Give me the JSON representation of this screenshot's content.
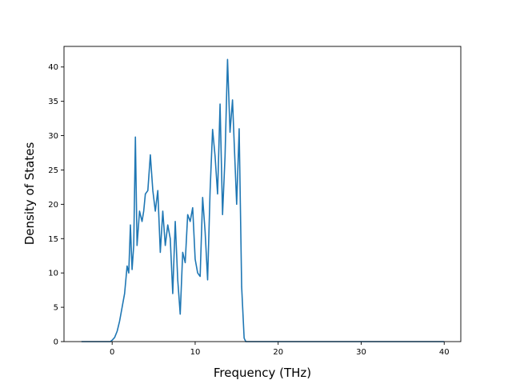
{
  "chart_data": {
    "type": "line",
    "title": "",
    "xlabel": "Frequency (THz)",
    "ylabel": "Density of States",
    "xlim": [
      -5.8,
      42
    ],
    "ylim": [
      0,
      43
    ],
    "xticks": [
      0,
      10,
      20,
      30,
      40
    ],
    "yticks": [
      0,
      5,
      10,
      15,
      20,
      25,
      30,
      35,
      40
    ],
    "grid": false,
    "legend": "none",
    "series_color": "#1f77b4",
    "series": [
      {
        "x": [
          -3.7,
          -1.0,
          -0.2,
          0.0,
          0.3,
          0.6,
          0.9,
          1.2,
          1.5,
          1.8,
          2.0,
          2.2,
          2.4,
          2.6,
          2.8,
          3.0,
          3.3,
          3.6,
          3.8,
          4.0,
          4.3,
          4.6,
          4.9,
          5.2,
          5.5,
          5.8,
          6.1,
          6.4,
          6.7,
          7.0,
          7.3,
          7.6,
          7.9,
          8.2,
          8.5,
          8.8,
          9.1,
          9.4,
          9.7,
          10.0,
          10.3,
          10.6,
          10.9,
          11.2,
          11.5,
          11.8,
          12.1,
          12.4,
          12.7,
          13.0,
          13.3,
          13.6,
          13.9,
          14.2,
          14.5,
          14.7,
          15.0,
          15.3,
          15.6,
          15.9,
          16.1,
          16.3,
          16.5,
          16.7,
          20.0,
          30.0,
          40.0
        ],
        "y": [
          0,
          0,
          0,
          0.2,
          0.6,
          1.5,
          3.0,
          5.0,
          7.0,
          11.0,
          10.0,
          17.0,
          10.5,
          14.0,
          29.8,
          14.0,
          19.0,
          17.5,
          19.0,
          21.5,
          22.0,
          27.2,
          22.0,
          19.0,
          22.0,
          13.0,
          19.0,
          14.0,
          17.0,
          15.0,
          7.0,
          17.5,
          9.0,
          4.0,
          13.0,
          11.5,
          18.5,
          17.5,
          19.5,
          12.0,
          10.0,
          9.5,
          21.0,
          16.0,
          9.0,
          22.0,
          30.9,
          27.0,
          21.5,
          34.6,
          18.5,
          27.0,
          41.1,
          30.5,
          35.2,
          29.0,
          20.0,
          31.0,
          8.0,
          0.5,
          0,
          0,
          0,
          0,
          0,
          0,
          0
        ]
      }
    ]
  }
}
